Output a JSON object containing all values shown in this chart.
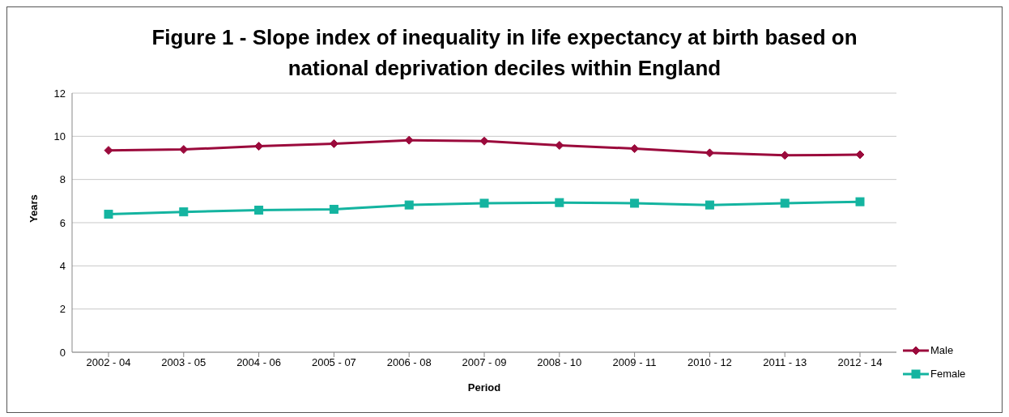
{
  "chart_data": {
    "type": "line",
    "title": "Figure 1 - Slope index of inequality in life expectancy at birth based on national deprivation deciles within England",
    "xlabel": "Period",
    "ylabel": "Years",
    "categories": [
      "2002 - 04",
      "2003 - 05",
      "2004 - 06",
      "2005 - 07",
      "2006 - 08",
      "2007 - 09",
      "2008 - 10",
      "2009 - 11",
      "2010 - 12",
      "2011 - 13",
      "2012 - 14"
    ],
    "series": [
      {
        "name": "Male",
        "color": "#9b0a3c",
        "marker": "diamond",
        "values": [
          9.35,
          9.39,
          9.54,
          9.66,
          9.82,
          9.78,
          9.58,
          9.43,
          9.23,
          9.12,
          9.15
        ]
      },
      {
        "name": "Female",
        "color": "#14b4a0",
        "marker": "square",
        "values": [
          6.39,
          6.5,
          6.58,
          6.62,
          6.82,
          6.9,
          6.93,
          6.9,
          6.82,
          6.9,
          6.97
        ]
      }
    ],
    "ylim": [
      0,
      12
    ],
    "yticks": [
      0,
      2,
      4,
      6,
      8,
      10,
      12
    ],
    "grid": "y",
    "legend": "bottom right",
    "line_style": "solid"
  }
}
